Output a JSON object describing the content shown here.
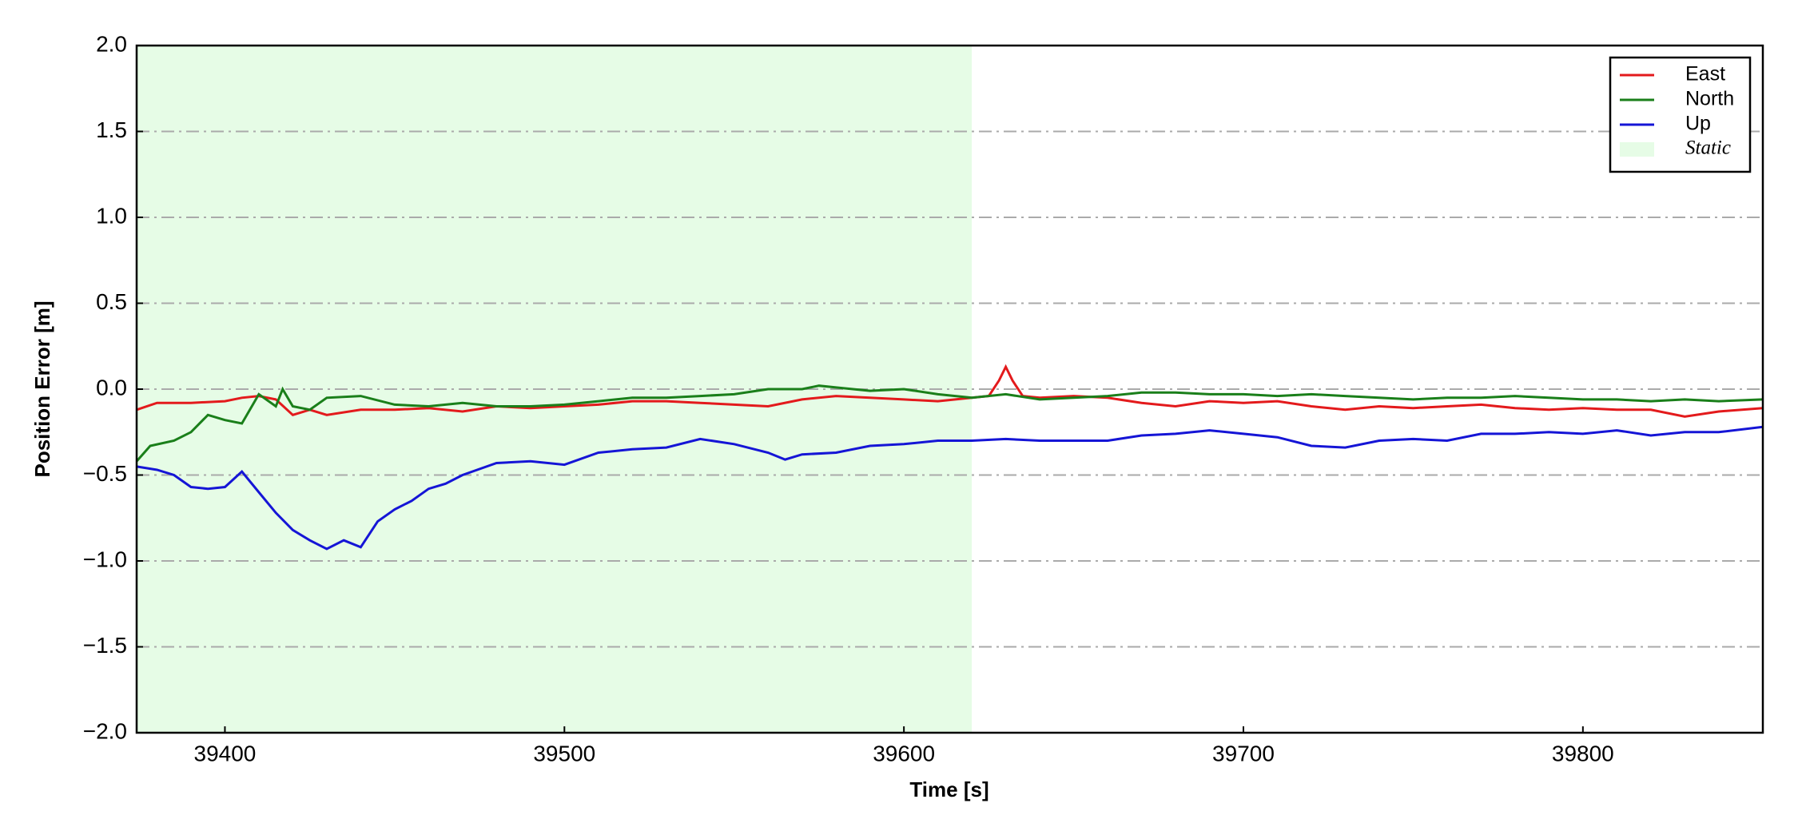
{
  "chart_data": {
    "type": "line",
    "xlabel": "Time [s]",
    "ylabel": "Position Error [m]",
    "xlim": [
      39374,
      39853
    ],
    "xticks": [
      39400,
      39500,
      39600,
      39700,
      39800
    ],
    "ylim": [
      -2,
      2
    ],
    "yticks": [
      {
        "value": -2,
        "label": "−2.0"
      },
      {
        "value": -1.5,
        "label": "−1.5"
      },
      {
        "value": -1,
        "label": "−1.0"
      },
      {
        "value": -0.5,
        "label": "−0.5"
      },
      {
        "value": 0,
        "label": "0.0"
      },
      {
        "value": 0.5,
        "label": "0.5"
      },
      {
        "value": 1,
        "label": "1.0"
      },
      {
        "value": 1.5,
        "label": "1.5"
      },
      {
        "value": 2,
        "label": "2.0"
      }
    ],
    "grid": true,
    "legend": "upper right",
    "spans": [
      {
        "name": "Static",
        "x": [
          39374,
          39620
        ],
        "color": "#e6fce6"
      }
    ],
    "series": [
      {
        "name": "East",
        "color": "#e31a1c",
        "x": [
          39374,
          39380,
          39390,
          39400,
          39405,
          39410,
          39415,
          39420,
          39425,
          39430,
          39440,
          39450,
          39460,
          39470,
          39480,
          39490,
          39500,
          39510,
          39520,
          39530,
          39540,
          39550,
          39560,
          39570,
          39580,
          39590,
          39600,
          39610,
          39620,
          39625,
          39628,
          39630,
          39632,
          39635,
          39640,
          39650,
          39660,
          39670,
          39680,
          39690,
          39700,
          39710,
          39720,
          39730,
          39740,
          39750,
          39760,
          39770,
          39780,
          39790,
          39800,
          39810,
          39820,
          39830,
          39840,
          39853
        ],
        "values": [
          -0.12,
          -0.08,
          -0.08,
          -0.07,
          -0.05,
          -0.04,
          -0.06,
          -0.15,
          -0.12,
          -0.15,
          -0.12,
          -0.12,
          -0.11,
          -0.13,
          -0.1,
          -0.11,
          -0.1,
          -0.09,
          -0.07,
          -0.07,
          -0.08,
          -0.09,
          -0.1,
          -0.06,
          -0.04,
          -0.05,
          -0.06,
          -0.07,
          -0.05,
          -0.04,
          0.05,
          0.13,
          0.05,
          -0.04,
          -0.05,
          -0.04,
          -0.05,
          -0.08,
          -0.1,
          -0.07,
          -0.08,
          -0.07,
          -0.1,
          -0.12,
          -0.1,
          -0.11,
          -0.1,
          -0.09,
          -0.11,
          -0.12,
          -0.11,
          -0.12,
          -0.12,
          -0.16,
          -0.13,
          -0.11
        ]
      },
      {
        "name": "North",
        "color": "#1a7f1a",
        "x": [
          39374,
          39378,
          39385,
          39390,
          39395,
          39400,
          39405,
          39410,
          39415,
          39417,
          39420,
          39425,
          39430,
          39440,
          39450,
          39460,
          39470,
          39480,
          39490,
          39500,
          39510,
          39520,
          39530,
          39540,
          39550,
          39560,
          39570,
          39575,
          39580,
          39590,
          39600,
          39610,
          39620,
          39630,
          39640,
          39650,
          39660,
          39670,
          39680,
          39690,
          39700,
          39710,
          39720,
          39730,
          39740,
          39750,
          39760,
          39770,
          39780,
          39790,
          39800,
          39810,
          39820,
          39830,
          39840,
          39853
        ],
        "values": [
          -0.42,
          -0.33,
          -0.3,
          -0.25,
          -0.15,
          -0.18,
          -0.2,
          -0.03,
          -0.1,
          0.0,
          -0.1,
          -0.12,
          -0.05,
          -0.04,
          -0.09,
          -0.1,
          -0.08,
          -0.1,
          -0.1,
          -0.09,
          -0.07,
          -0.05,
          -0.05,
          -0.04,
          -0.03,
          0.0,
          0.0,
          0.02,
          0.01,
          -0.01,
          0.0,
          -0.03,
          -0.05,
          -0.03,
          -0.06,
          -0.05,
          -0.04,
          -0.02,
          -0.02,
          -0.03,
          -0.03,
          -0.04,
          -0.03,
          -0.04,
          -0.05,
          -0.06,
          -0.05,
          -0.05,
          -0.04,
          -0.05,
          -0.06,
          -0.06,
          -0.07,
          -0.06,
          -0.07,
          -0.06
        ]
      },
      {
        "name": "Up",
        "color": "#1515d6",
        "x": [
          39374,
          39380,
          39385,
          39390,
          39395,
          39400,
          39405,
          39410,
          39415,
          39420,
          39425,
          39430,
          39435,
          39440,
          39445,
          39450,
          39455,
          39460,
          39465,
          39470,
          39480,
          39490,
          39500,
          39510,
          39520,
          39530,
          39540,
          39550,
          39560,
          39565,
          39570,
          39580,
          39590,
          39600,
          39610,
          39620,
          39630,
          39640,
          39650,
          39660,
          39670,
          39680,
          39690,
          39700,
          39710,
          39720,
          39730,
          39740,
          39750,
          39760,
          39770,
          39780,
          39790,
          39800,
          39810,
          39820,
          39830,
          39840,
          39853
        ],
        "values": [
          -0.45,
          -0.47,
          -0.5,
          -0.57,
          -0.58,
          -0.57,
          -0.48,
          -0.6,
          -0.72,
          -0.82,
          -0.88,
          -0.93,
          -0.88,
          -0.92,
          -0.77,
          -0.7,
          -0.65,
          -0.58,
          -0.55,
          -0.5,
          -0.43,
          -0.42,
          -0.44,
          -0.37,
          -0.35,
          -0.34,
          -0.29,
          -0.32,
          -0.37,
          -0.41,
          -0.38,
          -0.37,
          -0.33,
          -0.32,
          -0.3,
          -0.3,
          -0.29,
          -0.3,
          -0.3,
          -0.3,
          -0.27,
          -0.26,
          -0.24,
          -0.26,
          -0.28,
          -0.33,
          -0.34,
          -0.3,
          -0.29,
          -0.3,
          -0.26,
          -0.26,
          -0.25,
          -0.26,
          -0.24,
          -0.27,
          -0.25,
          -0.25,
          -0.22
        ]
      }
    ]
  }
}
